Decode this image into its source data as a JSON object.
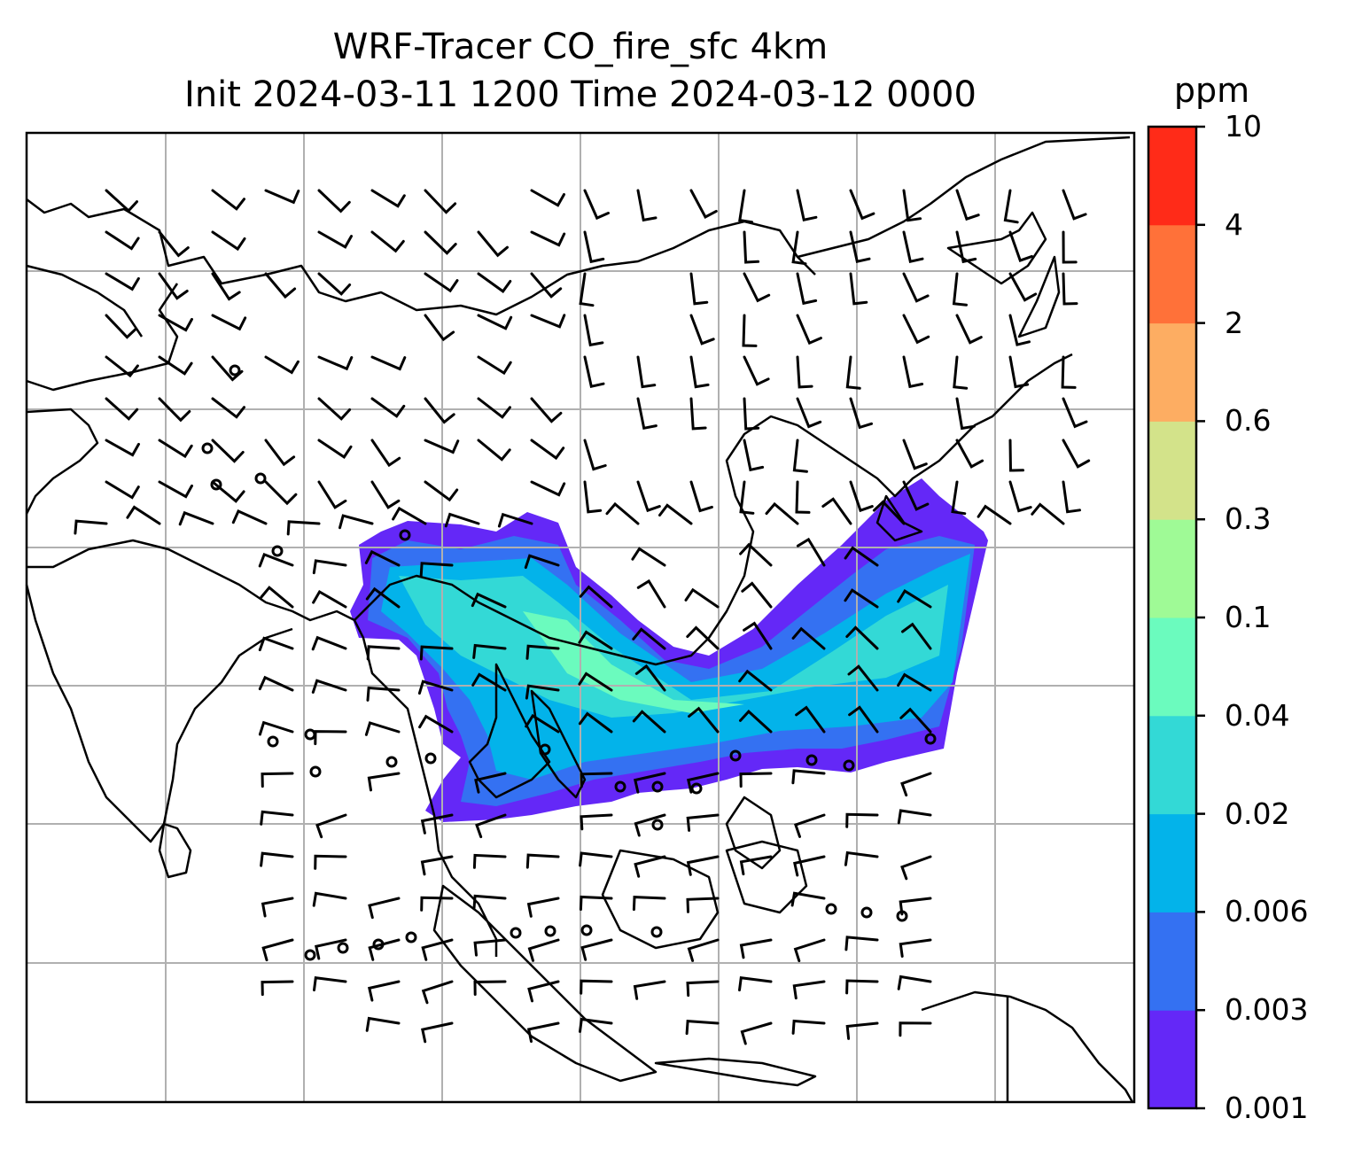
{
  "title_line1": "WRF-Tracer CO_fire_sfc 4km",
  "title_line2": "Init 2024-03-11 1200 Time 2024-03-12 0000",
  "colorbar": {
    "units": "ppm",
    "levels": [
      "0.001",
      "0.003",
      "0.006",
      "0.02",
      "0.04",
      "0.1",
      "0.3",
      "0.6",
      "2",
      "4",
      "10"
    ],
    "colors": [
      "#6428f7",
      "#3471f2",
      "#03b3ea",
      "#33d9d6",
      "#6bfbbe",
      "#9ffa96",
      "#d3e38a",
      "#fdad62",
      "#ff7139",
      "#ff2b18"
    ]
  },
  "colors": {
    "coast": "#000000",
    "grid": "#b0b0b0"
  }
}
